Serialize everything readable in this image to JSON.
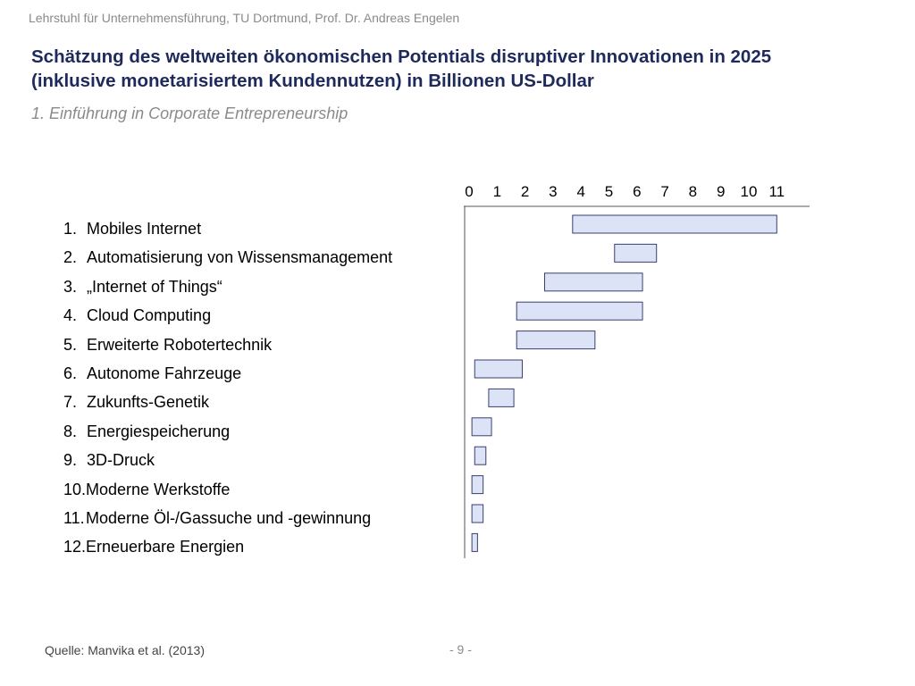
{
  "header": {
    "line": "Lehrstuhl für Unternehmensführung, TU Dortmund,  Prof. Dr. Andreas Engelen"
  },
  "slide": {
    "title_line1": "Schätzung des weltweiten ökonomischen Potentials disruptiver Innovationen in 2025",
    "title_line2": "(inklusive monetarisiertem Kundennutzen) in Billionen US-Dollar",
    "subtitle": "1. Einführung in Corporate Entrepreneurship"
  },
  "footer": {
    "source": "Quelle: Manvika et al. (2013)",
    "page": "- 9 -"
  },
  "colors": {
    "title": "#1f2a5c",
    "bar_fill": "#dde3f7",
    "bar_stroke": "#3a3f6e",
    "axis": "#555555"
  },
  "chart_data": {
    "type": "range-bar",
    "orientation": "horizontal",
    "xticks": [
      "0",
      "1",
      "2",
      "3",
      "4",
      "5",
      "6",
      "7",
      "8",
      "9",
      "10",
      "11"
    ],
    "xlim": [
      0,
      12
    ],
    "categories": [
      {
        "number": "1.",
        "label": "Mobiles Internet",
        "range": [
          3.7,
          11.0
        ]
      },
      {
        "number": "2.",
        "label": "Automatisierung von Wissensmanagement",
        "range": [
          5.2,
          6.7
        ]
      },
      {
        "number": "3.",
        "label": "„Internet of Things“",
        "range": [
          2.7,
          6.2
        ]
      },
      {
        "number": "4.",
        "label": "Cloud Computing",
        "range": [
          1.7,
          6.2
        ]
      },
      {
        "number": "5.",
        "label": "Erweiterte Robotertechnik",
        "range": [
          1.7,
          4.5
        ]
      },
      {
        "number": "6.",
        "label": "Autonome Fahrzeuge",
        "range": [
          0.2,
          1.9
        ]
      },
      {
        "number": "7.",
        "label": "Zukunfts-Genetik",
        "range": [
          0.7,
          1.6
        ]
      },
      {
        "number": "8.",
        "label": "Energiespeicherung",
        "range": [
          0.1,
          0.8
        ]
      },
      {
        "number": "9.",
        "label": "3D-Druck",
        "range": [
          0.2,
          0.6
        ]
      },
      {
        "number": "10.",
        "label": "Moderne Werkstoffe",
        "range": [
          0.1,
          0.5
        ]
      },
      {
        "number": "11.",
        "label": "Moderne Öl-/Gassuche und -gewinnung",
        "range": [
          0.1,
          0.5
        ]
      },
      {
        "number": "12.",
        "label": "Erneuerbare Energien",
        "range": [
          0.1,
          0.3
        ]
      }
    ]
  }
}
